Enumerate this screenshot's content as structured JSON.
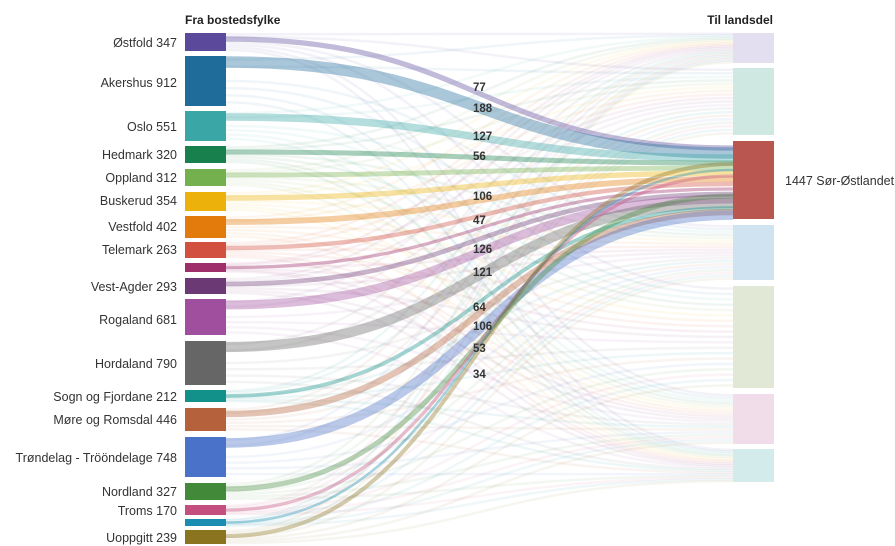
{
  "chart_data": {
    "type": "sankey",
    "source_header": "Fra bostedsfylke",
    "target_header": "Til landsdel",
    "highlight_target": "1447 Sør-Østlandet",
    "sources": [
      {
        "name": "Østfold 347",
        "value": 347,
        "color": "#5b4a9b"
      },
      {
        "name": "Akershus 912",
        "value": 912,
        "color": "#1f6b9a"
      },
      {
        "name": "Oslo 551",
        "value": 551,
        "color": "#3aa6a6"
      },
      {
        "name": "Hedmark 320",
        "value": 320,
        "color": "#17804d"
      },
      {
        "name": "Oppland 312",
        "value": 312,
        "color": "#74b04d"
      },
      {
        "name": "Buskerud 354",
        "value": 354,
        "color": "#ecb20b"
      },
      {
        "name": "Vestfold 402",
        "value": 402,
        "color": "#e37b0c"
      },
      {
        "name": "Telemark 263",
        "value": 263,
        "color": "#d1503f"
      },
      {
        "name": "",
        "value": 160,
        "color": "#9e2f6b"
      },
      {
        "name": "Vest-Agder 293",
        "value": 293,
        "color": "#6b3a75"
      },
      {
        "name": "Rogaland 681",
        "value": 681,
        "color": "#a04e9e"
      },
      {
        "name": "Hordaland 790",
        "value": 790,
        "color": "#666666"
      },
      {
        "name": "Sogn og Fjordane 212",
        "value": 212,
        "color": "#11918a"
      },
      {
        "name": "Møre og Romsdal 446",
        "value": 446,
        "color": "#b5613b"
      },
      {
        "name": "Trøndelag - Trööndelage 748",
        "value": 748,
        "color": "#4a72c9"
      },
      {
        "name": "Nordland 327",
        "value": 327,
        "color": "#428a3a"
      },
      {
        "name": "Troms 170",
        "value": 170,
        "color": "#c44e7e"
      },
      {
        "name": "",
        "value": 100,
        "color": "#1b8db0"
      },
      {
        "name": "Uoppgitt 239",
        "value": 239,
        "color": "#8b7420"
      }
    ],
    "targets": [
      {
        "name": "",
        "color": "#e4dff0"
      },
      {
        "name": "",
        "color": "#cfe8e2"
      },
      {
        "name": "1447 Sør-Østlandet",
        "color": "#b95650"
      },
      {
        "name": "",
        "color": "#cfe3f1"
      },
      {
        "name": "",
        "color": "#e2e8d6"
      },
      {
        "name": "",
        "color": "#f1dcea"
      },
      {
        "name": "",
        "color": "#d3ebea"
      }
    ],
    "flow_labels": [
      "77",
      "188",
      "127",
      "56",
      "106",
      "47",
      "126",
      "121",
      "64",
      "106",
      "53",
      "34"
    ]
  }
}
